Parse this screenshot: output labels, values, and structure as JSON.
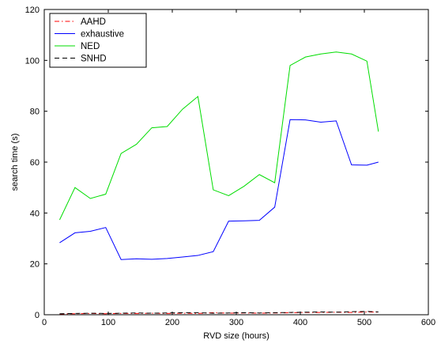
{
  "chart_data": {
    "type": "line",
    "title": "",
    "xlabel": "RVD size (hours)",
    "ylabel": "search time (s)",
    "xlim": [
      0,
      600
    ],
    "ylim": [
      0,
      120
    ],
    "x_ticks": [
      0,
      100,
      200,
      300,
      400,
      500,
      600
    ],
    "y_ticks": [
      0,
      20,
      40,
      60,
      80,
      100,
      120
    ],
    "grid": false,
    "legend_position": "top-left",
    "x": [
      24,
      48,
      72,
      96,
      120,
      144,
      168,
      192,
      216,
      240,
      264,
      288,
      312,
      336,
      360,
      384,
      408,
      432,
      456,
      480,
      504,
      522
    ],
    "series": [
      {
        "name": "AAHD",
        "color": "#ff0000",
        "dash": "dash-dot",
        "values": [
          0.3,
          0.4,
          0.5,
          0.4,
          0.5,
          0.5,
          0.6,
          0.5,
          0.6,
          0.5,
          0.8,
          0.6,
          0.7,
          0.6,
          0.7,
          0.8,
          0.9,
          0.9,
          1.0,
          0.9,
          1.1,
          1.0
        ]
      },
      {
        "name": "exhaustive",
        "color": "#0000ff",
        "dash": "solid",
        "values": [
          28.3,
          32.2,
          32.8,
          34.3,
          21.7,
          22.0,
          21.8,
          22.1,
          22.7,
          23.3,
          24.8,
          36.8,
          36.9,
          37.1,
          42.3,
          76.7,
          76.6,
          75.7,
          76.2,
          58.9,
          58.8,
          60.0
        ]
      },
      {
        "name": "NED",
        "color": "#00dd00",
        "dash": "solid",
        "values": [
          37.3,
          50.0,
          45.7,
          47.4,
          63.4,
          67.0,
          73.5,
          74.0,
          80.8,
          85.8,
          49.1,
          46.8,
          50.5,
          55.1,
          51.9,
          98.0,
          101.3,
          102.5,
          103.3,
          102.5,
          99.7,
          72.0
        ]
      },
      {
        "name": "SNHD",
        "color": "#000000",
        "dash": "dashed",
        "values": [
          0.4,
          0.5,
          0.6,
          0.5,
          0.6,
          0.7,
          0.6,
          0.7,
          0.8,
          0.8,
          0.6,
          0.7,
          0.8,
          0.7,
          0.8,
          0.9,
          1.0,
          1.1,
          1.0,
          1.2,
          1.3,
          1.1
        ]
      }
    ]
  }
}
